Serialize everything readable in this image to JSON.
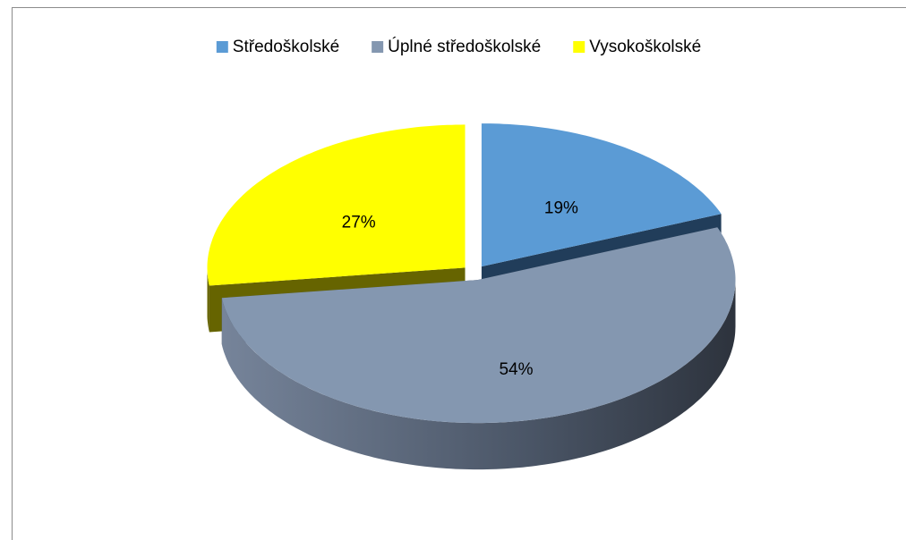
{
  "chart_data": {
    "type": "pie",
    "categories": [
      "Středoškolské",
      "Úplné středoškolské",
      "Vysokoškolské"
    ],
    "values": [
      19,
      54,
      27
    ],
    "value_labels": [
      "19%",
      "54%",
      "27%"
    ],
    "colors": [
      "#5b9bd5",
      "#8497b0",
      "#ffff00"
    ],
    "legend": "top"
  }
}
